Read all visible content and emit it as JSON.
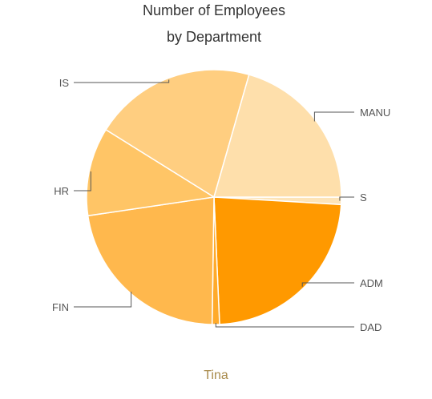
{
  "chart_data": {
    "type": "pie",
    "title": "Number of Employees",
    "subtitle": "by Department",
    "categories": [
      "S",
      "ADM",
      "DAD",
      "FIN",
      "HR",
      "IS",
      "MANU"
    ],
    "values": [
      1,
      25,
      1,
      24,
      12,
      22,
      22
    ],
    "colors": [
      "#fde4b8",
      "#ff9900",
      "#ffaa2a",
      "#ffb84d",
      "#ffc566",
      "#ffce80",
      "#fedfab"
    ],
    "start_angle_deg": 0,
    "direction": "clockwise",
    "legend": "leader-line labels"
  },
  "caption": {
    "text": "Tina",
    "color": "#a88a4a"
  }
}
